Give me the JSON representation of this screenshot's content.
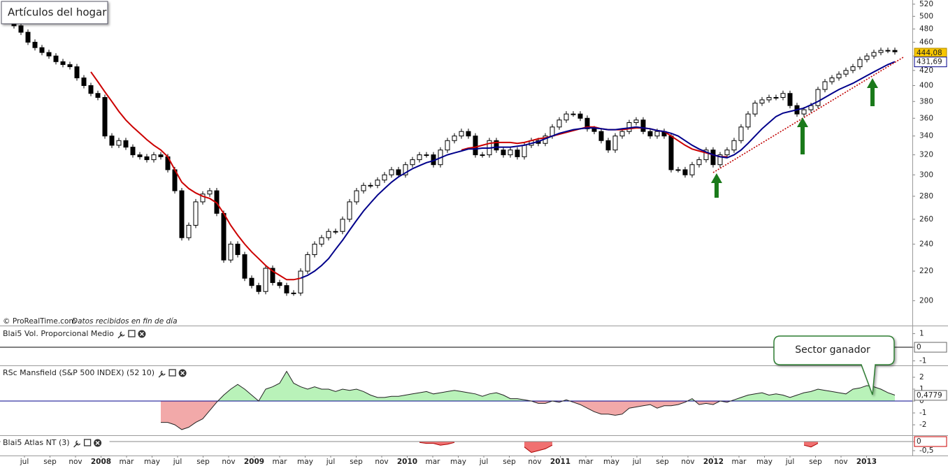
{
  "chart_data": [
    {
      "type": "candlestick",
      "title": "Artículos del hogar",
      "note": "© ProRealTime.com",
      "note_italic": "Datos recibidos en fin de día",
      "log_scale": true,
      "ylim": [
        185,
        527
      ],
      "yticks": [
        520,
        500,
        480,
        460,
        440,
        420,
        400,
        380,
        360,
        340,
        320,
        300,
        280,
        260,
        240,
        220,
        200
      ],
      "x_labels": [
        "jul",
        "sep",
        "nov",
        "2008",
        "mar",
        "may",
        "jul",
        "sep",
        "nov",
        "2009",
        "mar",
        "may",
        "jul",
        "sep",
        "nov",
        "2010",
        "mar",
        "may",
        "jul",
        "sep",
        "nov",
        "2011",
        "mar",
        "may",
        "jul",
        "sep",
        "nov",
        "2012",
        "mar",
        "may",
        "jul",
        "sep",
        "nov",
        "2013"
      ],
      "values": [
        495,
        485,
        475,
        460,
        452,
        445,
        440,
        432,
        428,
        425,
        410,
        400,
        390,
        385,
        340,
        330,
        335,
        328,
        320,
        318,
        315,
        320,
        318,
        305,
        285,
        245,
        255,
        275,
        282,
        285,
        265,
        228,
        240,
        232,
        215,
        210,
        206,
        222,
        212,
        210,
        205,
        205,
        220,
        232,
        240,
        245,
        250,
        250,
        260,
        275,
        285,
        290,
        290,
        295,
        300,
        305,
        300,
        310,
        315,
        320,
        320,
        310,
        325,
        335,
        340,
        345,
        340,
        320,
        320,
        335,
        325,
        320,
        325,
        318,
        330,
        335,
        332,
        340,
        350,
        358,
        365,
        365,
        360,
        348,
        345,
        335,
        325,
        340,
        345,
        355,
        358,
        345,
        340,
        345,
        340,
        305,
        305,
        300,
        310,
        315,
        325,
        310,
        320,
        325,
        335,
        350,
        365,
        378,
        382,
        385,
        385,
        390,
        375,
        365,
        370,
        375,
        395,
        405,
        410,
        415,
        420,
        425,
        435,
        440,
        445,
        448,
        448,
        446
      ],
      "last_value": {
        "value": 444.08,
        "label": "444,08"
      },
      "series": [
        {
          "color": "#cc0000",
          "values": [
            null,
            null,
            null,
            null,
            null,
            null,
            null,
            null,
            null,
            null,
            null,
            null,
            418,
            405,
            392,
            380,
            368,
            358,
            350,
            343,
            336,
            330,
            325,
            318,
            305,
            293,
            287,
            283,
            280,
            278,
            274,
            265,
            255,
            247,
            240,
            234,
            229,
            224,
            220,
            217,
            214,
            214,
            215,
            null,
            null,
            null,
            null,
            null,
            null,
            null,
            null,
            null,
            null,
            null,
            null,
            null,
            null,
            null,
            null,
            null,
            null,
            null,
            null,
            null,
            null,
            325,
            327,
            328,
            330,
            332,
            333,
            333,
            333,
            332,
            333,
            335,
            337,
            338,
            340,
            342,
            344,
            346,
            348,
            350,
            350,
            348,
            347,
            347,
            347,
            348,
            349,
            349,
            348,
            346,
            345,
            340,
            335,
            330,
            326,
            324,
            322,
            320,
            318,
            318,
            null,
            null,
            null,
            null,
            null,
            null,
            null,
            null,
            null,
            null,
            null,
            null,
            null,
            null,
            null,
            null,
            null,
            null,
            null,
            null,
            null,
            null,
            null,
            null
          ]
        },
        {
          "color": "#00008b",
          "last_value": {
            "value": 431.69,
            "label": "431,69"
          },
          "values": [
            null,
            null,
            null,
            null,
            null,
            null,
            null,
            null,
            null,
            null,
            null,
            null,
            null,
            null,
            null,
            null,
            null,
            null,
            null,
            null,
            null,
            null,
            null,
            null,
            null,
            null,
            null,
            null,
            null,
            null,
            null,
            null,
            null,
            null,
            null,
            null,
            null,
            null,
            null,
            null,
            null,
            null,
            215,
            217,
            220,
            224,
            229,
            236,
            243,
            251,
            259,
            267,
            274,
            281,
            287,
            293,
            298,
            302,
            306,
            309,
            312,
            314,
            317,
            320,
            322,
            324,
            326,
            326,
            327,
            327,
            328,
            328,
            328,
            329,
            330,
            332,
            334,
            337,
            340,
            343,
            345,
            347,
            348,
            349,
            349,
            348,
            347,
            347,
            348,
            349,
            350,
            349,
            348,
            346,
            345,
            343,
            340,
            335,
            330,
            326,
            323,
            320,
            318,
            317,
            320,
            325,
            332,
            340,
            348,
            355,
            362,
            366,
            368,
            370,
            372,
            376,
            380,
            385,
            390,
            395,
            399,
            403,
            408,
            413,
            418,
            423,
            428,
            432
          ]
        }
      ]
    },
    {
      "type": "line",
      "title": "Blai5 Vol. Proporcional Medio",
      "ylim": [
        -1.28,
        1.49
      ],
      "yticks": [
        1,
        0,
        -1
      ],
      "current_value": 0,
      "color": "#000000"
    },
    {
      "type": "area",
      "title": "RSc Mansfield (S&P 500 INDEX) (52 10)",
      "ylim": [
        -2.82,
        2.94
      ],
      "yticks": [
        2,
        1,
        0,
        -1,
        -2
      ],
      "current_value": {
        "value": 0.4779,
        "label": "0,4779"
      },
      "annotation": "Sector ganador",
      "colors": {
        "above": "#b9f2b9",
        "below": "#f2a9a9",
        "line": "#222222",
        "zero": "#00008b"
      },
      "values": [
        null,
        null,
        null,
        null,
        null,
        null,
        null,
        null,
        null,
        null,
        null,
        null,
        null,
        null,
        null,
        null,
        null,
        null,
        null,
        null,
        null,
        null,
        -1.8,
        -1.8,
        -2.0,
        -2.4,
        -2.2,
        -1.8,
        -1.5,
        -0.8,
        -0.1,
        0.5,
        1.0,
        1.4,
        1.0,
        0.5,
        0,
        1.0,
        1.2,
        1.5,
        2.5,
        1.5,
        1.2,
        1.0,
        1.2,
        1.0,
        1.0,
        0.8,
        1.0,
        0.9,
        1.0,
        0.8,
        0.5,
        0.3,
        0.3,
        0.4,
        0.4,
        0.5,
        0.6,
        0.7,
        0.8,
        0.6,
        0.7,
        0.8,
        0.9,
        0.8,
        0.7,
        0.6,
        0.4,
        0.6,
        0.7,
        0.5,
        0.2,
        0.2,
        0.1,
        0,
        -0.2,
        -0.2,
        0,
        -0.1,
        0.1,
        -0.1,
        -0.3,
        -0.6,
        -0.9,
        -1.1,
        -1.1,
        -1.2,
        -1.1,
        -0.6,
        -0.5,
        -0.4,
        -0.3,
        -0.6,
        -0.4,
        -0.4,
        -0.3,
        -0.1,
        0.2,
        -0.3,
        -0.2,
        -0.3,
        0,
        -0.1,
        0.1,
        0.3,
        0.5,
        0.6,
        0.7,
        0.5,
        0.6,
        0.5,
        0.3,
        0.5,
        0.7,
        0.8,
        1.0,
        0.9,
        0.8,
        0.7,
        0.6,
        1.0,
        1.1,
        1.3,
        1.2,
        1.0,
        0.7,
        0.5
      ]
    },
    {
      "type": "area",
      "title": "Blai5 Atlas NT (3)",
      "ylim": [
        -0.73,
        0.31
      ],
      "yticks": [
        0,
        {
          "value": -0.5,
          "label": "-0,5"
        }
      ],
      "current_value": 0,
      "colors": {
        "above": "#b9f2b9",
        "below": "#f07070",
        "line": "#aa0000",
        "zero": "#888888"
      },
      "values": [
        null,
        null,
        null,
        null,
        null,
        null,
        null,
        null,
        null,
        null,
        null,
        null,
        null,
        null,
        null,
        null,
        null,
        null,
        null,
        null,
        null,
        null,
        null,
        null,
        null,
        null,
        null,
        null,
        null,
        null,
        null,
        null,
        null,
        null,
        null,
        null,
        null,
        null,
        null,
        null,
        null,
        null,
        null,
        null,
        null,
        null,
        null,
        null,
        null,
        null,
        null,
        null,
        null,
        null,
        null,
        null,
        null,
        null,
        null,
        -0.05,
        -0.1,
        -0.1,
        -0.2,
        -0.15,
        -0.05,
        null,
        null,
        null,
        null,
        null,
        null,
        null,
        null,
        null,
        -0.3,
        -0.6,
        -0.5,
        -0.4,
        -0.2,
        null,
        null,
        null,
        null,
        null,
        null,
        null,
        null,
        null,
        null,
        null,
        null,
        null,
        null,
        null,
        null,
        null,
        null,
        null,
        null,
        null,
        null,
        null,
        null,
        null,
        null,
        null,
        null,
        null,
        null,
        null,
        null,
        null,
        null,
        null,
        -0.2,
        -0.3,
        -0.1,
        null,
        null,
        null,
        null,
        null,
        null,
        null,
        null,
        null,
        null,
        null
      ]
    }
  ]
}
